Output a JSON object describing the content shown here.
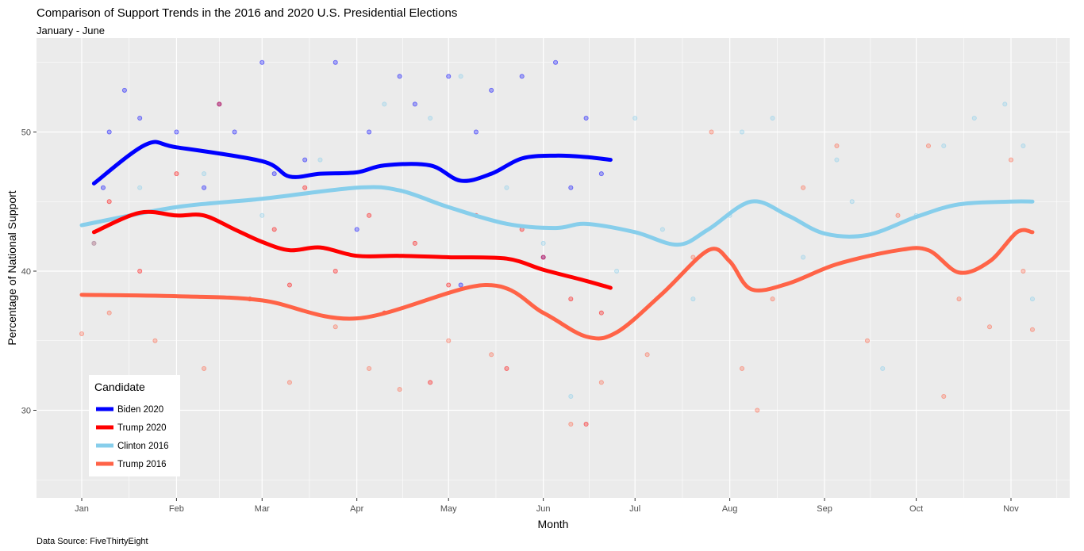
{
  "chart_data": {
    "type": "scatter+line",
    "title": "Comparison of Support Trends in the 2016 and 2020 U.S. Presidential Elections",
    "subtitle": "January - June",
    "xlabel": "Month",
    "ylabel": "Percentage of National Support",
    "caption": "Data Source: FiveThirtyEight",
    "x_ticks": [
      "Jan",
      "Feb",
      "Mar",
      "Apr",
      "May",
      "Jun",
      "Jul",
      "Aug",
      "Sep",
      "Oct",
      "Nov"
    ],
    "y_ticks": [
      30,
      40,
      50
    ],
    "ylim": [
      23.7,
      56.7
    ],
    "xlim": [
      "12-17",
      "11-23"
    ],
    "grid": true,
    "legend": {
      "title": "Candidate",
      "placement": "bottom-left"
    },
    "series": [
      {
        "name": "Biden 2020",
        "color": "#0000FF",
        "trend": [
          [
            "01-05",
            46.3
          ],
          [
            "01-22",
            49.1
          ],
          [
            "02-01",
            48.9
          ],
          [
            "03-01",
            47.9
          ],
          [
            "03-10",
            46.8
          ],
          [
            "03-20",
            47.0
          ],
          [
            "04-01",
            47.1
          ],
          [
            "04-10",
            47.6
          ],
          [
            "04-25",
            47.6
          ],
          [
            "05-05",
            46.5
          ],
          [
            "05-15",
            47.0
          ],
          [
            "05-25",
            48.1
          ],
          [
            "06-05",
            48.3
          ],
          [
            "06-15",
            48.2
          ],
          [
            "06-23",
            48.0
          ]
        ],
        "points": [
          [
            "01-08",
            46
          ],
          [
            "01-10",
            50
          ],
          [
            "01-15",
            53
          ],
          [
            "01-20",
            51
          ],
          [
            "02-01",
            50
          ],
          [
            "02-10",
            46
          ],
          [
            "02-15",
            52
          ],
          [
            "02-20",
            50
          ],
          [
            "03-01",
            55
          ],
          [
            "03-05",
            47
          ],
          [
            "03-15",
            48
          ],
          [
            "03-25",
            55
          ],
          [
            "04-01",
            43
          ],
          [
            "04-05",
            50
          ],
          [
            "04-15",
            54
          ],
          [
            "04-20",
            52
          ],
          [
            "05-01",
            54
          ],
          [
            "05-05",
            39
          ],
          [
            "05-10",
            50
          ],
          [
            "05-15",
            53
          ],
          [
            "05-25",
            54
          ],
          [
            "06-01",
            41
          ],
          [
            "06-05",
            55
          ],
          [
            "06-10",
            46
          ],
          [
            "06-15",
            51
          ],
          [
            "06-20",
            47
          ]
        ]
      },
      {
        "name": "Trump 2020",
        "color": "#FF0000",
        "trend": [
          [
            "01-05",
            42.8
          ],
          [
            "01-20",
            44.2
          ],
          [
            "02-01",
            44.0
          ],
          [
            "02-10",
            44.0
          ],
          [
            "02-20",
            43.0
          ],
          [
            "03-01",
            42.1
          ],
          [
            "03-10",
            41.5
          ],
          [
            "03-20",
            41.7
          ],
          [
            "04-01",
            41.1
          ],
          [
            "04-15",
            41.1
          ],
          [
            "05-01",
            41.0
          ],
          [
            "05-20",
            40.9
          ],
          [
            "06-01",
            40.1
          ],
          [
            "06-15",
            39.3
          ],
          [
            "06-23",
            38.8
          ]
        ],
        "points": [
          [
            "01-05",
            42
          ],
          [
            "01-10",
            45
          ],
          [
            "01-20",
            40
          ],
          [
            "02-01",
            47
          ],
          [
            "02-15",
            52
          ],
          [
            "02-25",
            38
          ],
          [
            "03-05",
            43
          ],
          [
            "03-10",
            39
          ],
          [
            "03-15",
            46
          ],
          [
            "03-25",
            40
          ],
          [
            "04-05",
            44
          ],
          [
            "04-10",
            37
          ],
          [
            "04-20",
            42
          ],
          [
            "04-25",
            32
          ],
          [
            "05-01",
            39
          ],
          [
            "05-10",
            44
          ],
          [
            "05-20",
            33
          ],
          [
            "05-25",
            43
          ],
          [
            "06-01",
            41
          ],
          [
            "06-10",
            38
          ],
          [
            "06-15",
            29
          ],
          [
            "06-20",
            37
          ]
        ]
      },
      {
        "name": "Clinton 2016",
        "color": "#87CEEB",
        "trend": [
          [
            "01-01",
            43.3
          ],
          [
            "02-01",
            44.6
          ],
          [
            "03-01",
            45.2
          ],
          [
            "04-01",
            46.0
          ],
          [
            "04-15",
            45.8
          ],
          [
            "05-01",
            44.6
          ],
          [
            "05-20",
            43.4
          ],
          [
            "06-05",
            43.1
          ],
          [
            "06-15",
            43.4
          ],
          [
            "07-01",
            42.8
          ],
          [
            "07-15",
            41.9
          ],
          [
            "07-25",
            43.0
          ],
          [
            "08-08",
            45.0
          ],
          [
            "08-20",
            44.0
          ],
          [
            "09-01",
            42.7
          ],
          [
            "09-15",
            42.6
          ],
          [
            "10-01",
            43.9
          ],
          [
            "10-15",
            44.8
          ],
          [
            "11-01",
            45.0
          ],
          [
            "11-08",
            45.0
          ]
        ],
        "points": [
          [
            "01-05",
            42
          ],
          [
            "01-20",
            46
          ],
          [
            "02-10",
            47
          ],
          [
            "03-01",
            44
          ],
          [
            "03-20",
            48
          ],
          [
            "04-10",
            52
          ],
          [
            "04-25",
            51
          ],
          [
            "05-05",
            54
          ],
          [
            "05-20",
            46
          ],
          [
            "06-01",
            42
          ],
          [
            "06-10",
            31
          ],
          [
            "06-25",
            40
          ],
          [
            "07-01",
            51
          ],
          [
            "07-10",
            43
          ],
          [
            "07-20",
            38
          ],
          [
            "08-01",
            44
          ],
          [
            "08-05",
            50
          ],
          [
            "08-15",
            51
          ],
          [
            "08-25",
            41
          ],
          [
            "09-05",
            48
          ],
          [
            "09-10",
            45
          ],
          [
            "09-20",
            33
          ],
          [
            "10-01",
            44
          ],
          [
            "10-10",
            49
          ],
          [
            "10-20",
            51
          ],
          [
            "10-30",
            52
          ],
          [
            "11-05",
            49
          ],
          [
            "11-08",
            38
          ]
        ]
      },
      {
        "name": "Trump 2016",
        "color": "#FF6347",
        "trend": [
          [
            "01-01",
            38.3
          ],
          [
            "02-01",
            38.2
          ],
          [
            "03-01",
            37.9
          ],
          [
            "04-01",
            36.6
          ],
          [
            "05-13",
            39.0
          ],
          [
            "06-01",
            37.0
          ],
          [
            "06-15",
            35.3
          ],
          [
            "06-25",
            35.6
          ],
          [
            "07-10",
            38.4
          ],
          [
            "07-25",
            41.5
          ],
          [
            "08-01",
            40.7
          ],
          [
            "08-08",
            38.7
          ],
          [
            "08-20",
            39.1
          ],
          [
            "09-05",
            40.5
          ],
          [
            "09-25",
            41.5
          ],
          [
            "10-05",
            41.5
          ],
          [
            "10-15",
            39.9
          ],
          [
            "10-25",
            40.7
          ],
          [
            "11-03",
            42.8
          ],
          [
            "11-08",
            42.8
          ]
        ],
        "points": [
          [
            "01-01",
            35.5
          ],
          [
            "01-10",
            37
          ],
          [
            "01-25",
            35
          ],
          [
            "02-10",
            33
          ],
          [
            "02-25",
            38
          ],
          [
            "03-10",
            32
          ],
          [
            "03-25",
            36
          ],
          [
            "04-05",
            33
          ],
          [
            "04-15",
            31.5
          ],
          [
            "05-01",
            35
          ],
          [
            "05-15",
            34
          ],
          [
            "06-10",
            29
          ],
          [
            "06-20",
            32
          ],
          [
            "07-05",
            34
          ],
          [
            "07-20",
            41
          ],
          [
            "07-26",
            50
          ],
          [
            "08-05",
            33
          ],
          [
            "08-10",
            30
          ],
          [
            "08-15",
            38
          ],
          [
            "08-25",
            46
          ],
          [
            "09-05",
            49
          ],
          [
            "09-15",
            35
          ],
          [
            "09-25",
            44
          ],
          [
            "10-05",
            49
          ],
          [
            "10-10",
            31
          ],
          [
            "10-15",
            38
          ],
          [
            "10-25",
            36
          ],
          [
            "11-01",
            48
          ],
          [
            "11-05",
            40
          ],
          [
            "11-08",
            35.8
          ]
        ]
      }
    ]
  }
}
